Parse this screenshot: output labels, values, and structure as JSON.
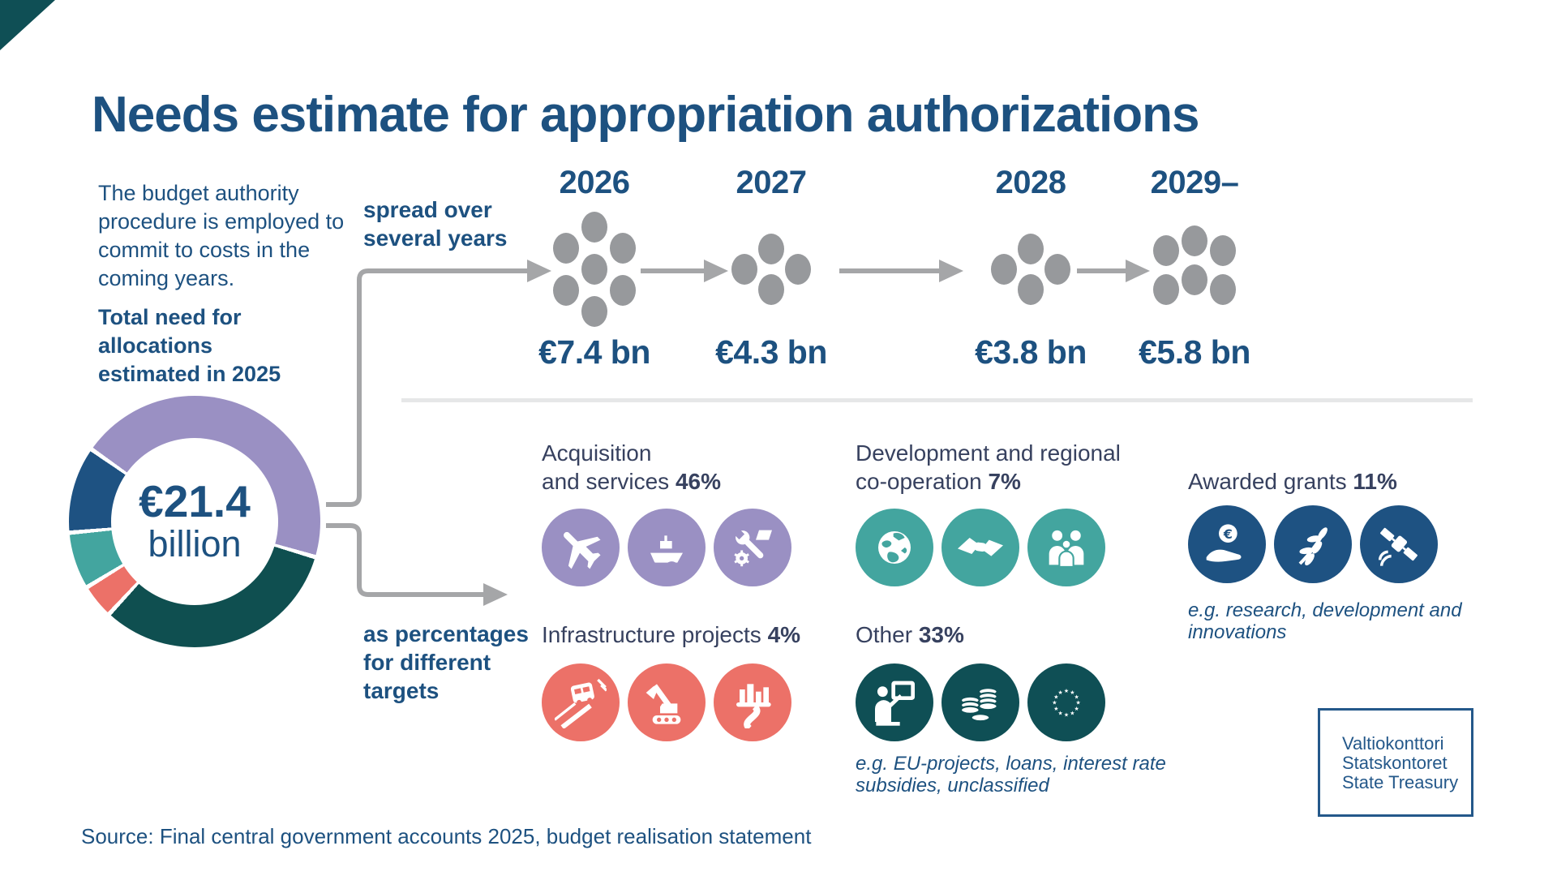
{
  "title": "Needs estimate for appropriation authorizations",
  "intro": {
    "paragraph": "The budget authority procedure is employed to commit to costs in the coming years.",
    "emphasis": "Total need for allocations estimated in 2025"
  },
  "donut": {
    "center_value": "€21.4",
    "center_unit": "billion",
    "start_angle_deg": -54,
    "segments": [
      {
        "label": "Acquisition and services",
        "pct": 46,
        "color": "#9A90C3"
      },
      {
        "label": "Other",
        "pct": 33,
        "color": "#0F4F50"
      },
      {
        "label": "Infrastructure projects",
        "pct": 4,
        "color": "#EC7168"
      },
      {
        "label": "Development and regional co-operation",
        "pct": 7,
        "color": "#43A59F"
      },
      {
        "label": "Awarded grants",
        "pct": 11,
        "color": "#1E5282"
      }
    ]
  },
  "flow": {
    "top_line1": "spread over",
    "top_line2": "several years",
    "bottom_line1": "as percentages",
    "bottom_line2": "for different",
    "bottom_line3": "targets"
  },
  "timeline": {
    "dot_color": "#97999C",
    "columns": [
      {
        "year": "2026",
        "amount": "€7.4 bn",
        "dots": 7
      },
      {
        "year": "2027",
        "amount": "€4.3 bn",
        "dots": 4
      },
      {
        "year": "2028",
        "amount": "€3.8 bn",
        "dots": 4
      },
      {
        "year": "2029–",
        "amount": "€5.8 bn",
        "dots": 6
      }
    ]
  },
  "categories": [
    {
      "name": "acquisition",
      "line1": "Acquisition",
      "line2": "and services",
      "pct": "46%",
      "color": "#9A90C3",
      "icons": [
        "jet-icon",
        "ship-icon",
        "maintenance-tools-icon"
      ]
    },
    {
      "name": "infrastructure",
      "line1": "Infrastructure projects",
      "pct": "4%",
      "color": "#EC7168",
      "icons": [
        "transit-road-icon",
        "excavator-icon",
        "city-road-icon"
      ]
    },
    {
      "name": "development",
      "line1": "Development and regional",
      "line2": "co-operation",
      "pct": "7%",
      "color": "#43A59F",
      "icons": [
        "globe-icon",
        "handshake-icon",
        "family-icon"
      ]
    },
    {
      "name": "other",
      "line1": "Other",
      "pct": "33%",
      "color": "#0F4F55",
      "icons": [
        "training-icon",
        "coins-icon",
        "eu-stars-icon"
      ],
      "note": "e.g. EU-projects, loans, interest rate subsidies, unclassified"
    },
    {
      "name": "grants",
      "line1": "Awarded grants",
      "pct": "11%",
      "color": "#1E5282",
      "icons": [
        "hand-euro-icon",
        "plant-icon",
        "satellite-icon"
      ],
      "note": "e.g. research, development and innovations"
    }
  ],
  "source": "Source: Final central government accounts 2025, budget realisation statement",
  "logo": {
    "line1": "Valtiokonttori",
    "line2": "Statskontoret",
    "line3": "State Treasury"
  },
  "palette": {
    "heading_blue": "#1D5180",
    "body_navy": "#37415F",
    "arrow_gray": "#A5A6A8",
    "divider_gray": "#E6E7E8",
    "dot_gray": "#97999C",
    "corner_teal": "#0F4F55"
  },
  "chart_data": [
    {
      "type": "pie",
      "subtype": "donut",
      "title": "Total need for allocations estimated in 2025",
      "center_label": "€21.4 billion",
      "labels": [
        "Acquisition and services",
        "Other",
        "Infrastructure projects",
        "Development and regional co-operation",
        "Awarded grants"
      ],
      "values": [
        46,
        33,
        4,
        7,
        11
      ],
      "unit": "%",
      "colors": [
        "#9A90C3",
        "#0F4F50",
        "#EC7168",
        "#43A59F",
        "#1E5282"
      ],
      "legend_position": "none"
    },
    {
      "type": "bar",
      "subtype": "pictogram-timeline",
      "title": "spread over several years",
      "categories": [
        "2026",
        "2027",
        "2028",
        "2029–"
      ],
      "values": [
        7.4,
        4.3,
        3.8,
        5.8
      ],
      "value_labels": [
        "€7.4 bn",
        "€4.3 bn",
        "€3.8 bn",
        "€5.8 bn"
      ],
      "unit": "€ bn",
      "dot_counts": [
        7,
        4,
        4,
        6
      ]
    }
  ]
}
